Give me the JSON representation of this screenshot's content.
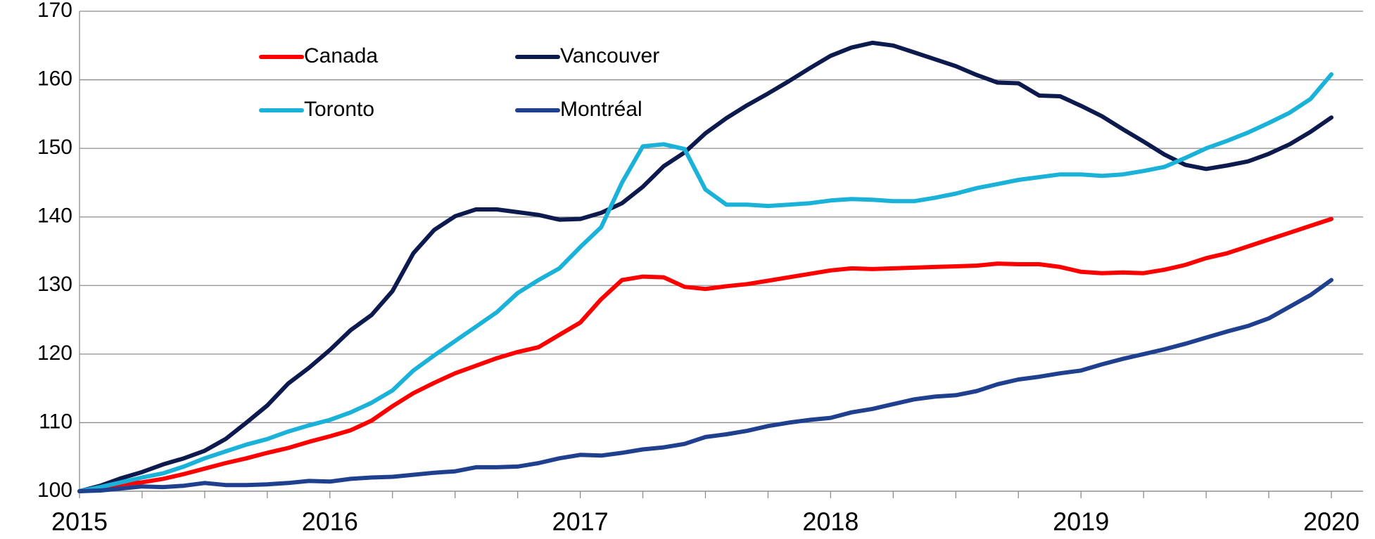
{
  "chart_data": {
    "type": "line",
    "categories": [
      "2015",
      null,
      null,
      null,
      null,
      null,
      null,
      null,
      null,
      null,
      null,
      null,
      "2016",
      null,
      null,
      null,
      null,
      null,
      null,
      null,
      null,
      null,
      null,
      null,
      "2017",
      null,
      null,
      null,
      null,
      null,
      null,
      null,
      null,
      null,
      null,
      null,
      "2018",
      null,
      null,
      null,
      null,
      null,
      null,
      null,
      null,
      null,
      null,
      null,
      "2019",
      null,
      null,
      null,
      null,
      null,
      null,
      null,
      null,
      null,
      null,
      null,
      "2020"
    ],
    "series": [
      {
        "name": "Canada",
        "color": "#ff0000",
        "values": [
          100,
          100.5,
          101,
          101.3,
          101.8,
          102.5,
          103.3,
          104.1,
          104.8,
          105.6,
          106.3,
          107.2,
          108,
          108.9,
          110.3,
          112.4,
          114.3,
          115.8,
          117.2,
          118.3,
          119.4,
          120.3,
          121,
          122.8,
          124.6,
          128,
          130.8,
          131.3,
          131.2,
          129.8,
          129.5,
          129.9,
          130.2,
          130.7,
          131.2,
          131.7,
          132.2,
          132.5,
          132.4,
          132.5,
          132.6,
          132.7,
          132.8,
          132.9,
          133.2,
          133.1,
          133.1,
          132.7,
          132,
          131.8,
          131.9,
          131.8,
          132.3,
          133,
          134,
          134.7,
          135.7,
          136.7,
          137.7,
          138.7,
          139.7
        ]
      },
      {
        "name": "Vancouver",
        "color": "#0d1a4d",
        "values": [
          100,
          100.8,
          101.9,
          102.8,
          103.9,
          104.8,
          105.9,
          107.6,
          110,
          112.5,
          115.7,
          118,
          120.6,
          123.5,
          125.7,
          129.2,
          134.7,
          138.1,
          140.1,
          141.1,
          141.1,
          140.7,
          140.3,
          139.6,
          139.7,
          140.6,
          142,
          144.4,
          147.4,
          149.4,
          152.2,
          154.4,
          156.3,
          158,
          159.8,
          161.7,
          163.5,
          164.7,
          165.4,
          165,
          164,
          163,
          162,
          160.7,
          159.6,
          159.5,
          157.7,
          157.6,
          156.2,
          154.7,
          152.8,
          151,
          149.1,
          147.6,
          147,
          147.5,
          148.1,
          149.2,
          150.6,
          152.4,
          154.5
        ]
      },
      {
        "name": "Toronto",
        "color": "#1ab2d9",
        "values": [
          100,
          100.6,
          101.3,
          102,
          102.6,
          103.6,
          104.8,
          105.8,
          106.8,
          107.6,
          108.7,
          109.6,
          110.4,
          111.5,
          112.9,
          114.7,
          117.6,
          119.8,
          121.9,
          124,
          126.1,
          128.9,
          130.8,
          132.5,
          135.6,
          138.5,
          145,
          150.3,
          150.6,
          149.9,
          144,
          141.8,
          141.8,
          141.6,
          141.8,
          142,
          142.4,
          142.6,
          142.5,
          142.3,
          142.3,
          142.8,
          143.4,
          144.2,
          144.8,
          145.4,
          145.8,
          146.2,
          146.2,
          146,
          146.2,
          146.7,
          147.3,
          148.6,
          150,
          151.1,
          152.3,
          153.7,
          155.2,
          157.2,
          160.8
        ]
      },
      {
        "name": "Montréal",
        "color": "#1f3f8f",
        "values": [
          100,
          100.1,
          100.4,
          100.7,
          100.6,
          100.8,
          101.2,
          100.9,
          100.9,
          101,
          101.2,
          101.5,
          101.4,
          101.8,
          102,
          102.1,
          102.4,
          102.7,
          102.9,
          103.5,
          103.5,
          103.6,
          104.1,
          104.8,
          105.3,
          105.2,
          105.6,
          106.1,
          106.4,
          106.9,
          107.9,
          108.3,
          108.8,
          109.5,
          110,
          110.4,
          110.7,
          111.5,
          112,
          112.7,
          113.4,
          113.8,
          114,
          114.6,
          115.6,
          116.3,
          116.7,
          117.2,
          117.6,
          118.5,
          119.3,
          120,
          120.7,
          121.5,
          122.4,
          123.3,
          124.1,
          125.2,
          126.9,
          128.6,
          130.8
        ]
      }
    ],
    "ylim": [
      100,
      170
    ],
    "yticks": [
      100,
      110,
      120,
      130,
      140,
      150,
      160,
      170
    ],
    "grid": true
  }
}
